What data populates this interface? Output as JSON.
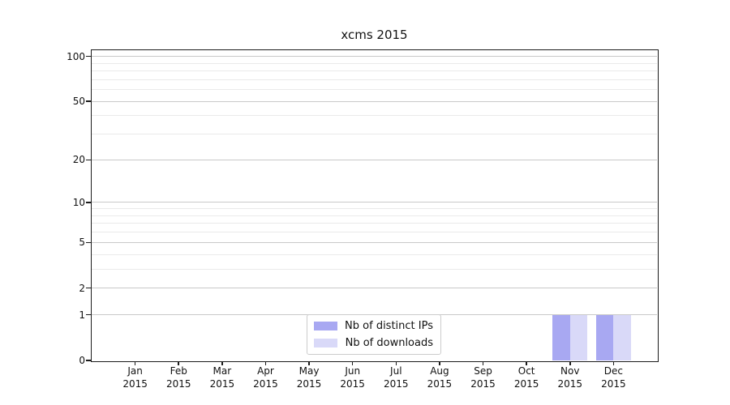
{
  "chart_data": {
    "type": "bar",
    "title": "xcms 2015",
    "categories": [
      "Jan 2015",
      "Feb 2015",
      "Mar 2015",
      "Apr 2015",
      "May 2015",
      "Jun 2015",
      "Jul 2015",
      "Aug 2015",
      "Sep 2015",
      "Oct 2015",
      "Nov 2015",
      "Dec 2015"
    ],
    "series": [
      {
        "name": "Nb of distinct IPs",
        "color": "#a8a8f2",
        "values": [
          0,
          0,
          0,
          0,
          0,
          0,
          0,
          0,
          0,
          0,
          1,
          1
        ]
      },
      {
        "name": "Nb of downloads",
        "color": "#d9d9f8",
        "values": [
          0,
          0,
          0,
          0,
          0,
          0,
          0,
          0,
          0,
          0,
          1,
          1
        ]
      }
    ],
    "xlabel": "",
    "ylabel": "",
    "yscale": "log1p",
    "ylim": [
      0,
      110
    ],
    "yticks": [
      0,
      1,
      2,
      5,
      10,
      20,
      50,
      100
    ],
    "yticks_minor": [
      3,
      4,
      6,
      7,
      8,
      9,
      30,
      40,
      60,
      70,
      80,
      90
    ],
    "grid": "both",
    "legend_position": "lower center",
    "colors": {
      "axis": "#1a1a1a",
      "grid_major": "#c9c9c9",
      "grid_minor": "#eaeaea",
      "background": "#ffffff"
    }
  }
}
